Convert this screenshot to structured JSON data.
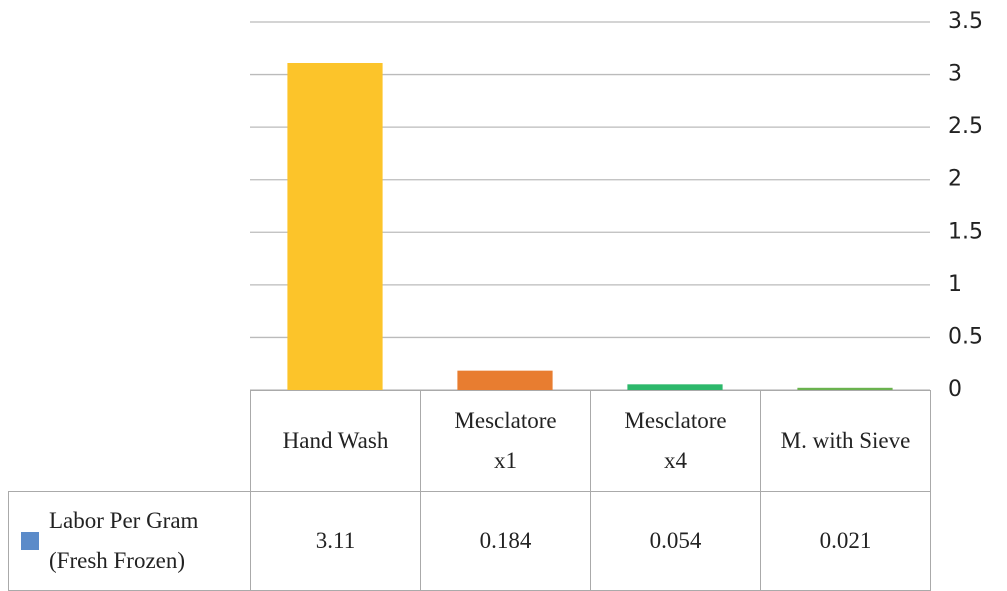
{
  "chart_data": {
    "type": "bar",
    "categories": [
      "Hand Wash",
      "Mesclatore x1",
      "Mesclatore x4",
      "M. with Sieve"
    ],
    "series": [
      {
        "name": "Labor Per Gram (Fresh Frozen)",
        "color": "#5b8bc9",
        "values": [
          3.11,
          0.184,
          0.054,
          0.021
        ]
      }
    ],
    "bar_colors": [
      "#fcc42a",
      "#e87d30",
      "#2db86b",
      "#6ab24e"
    ],
    "ylim": [
      0,
      3.5
    ],
    "yticks": [
      0,
      0.5,
      1,
      1.5,
      2,
      2.5,
      3,
      3.5
    ],
    "grid": true,
    "y_axis_side": "right",
    "data_table": true
  }
}
